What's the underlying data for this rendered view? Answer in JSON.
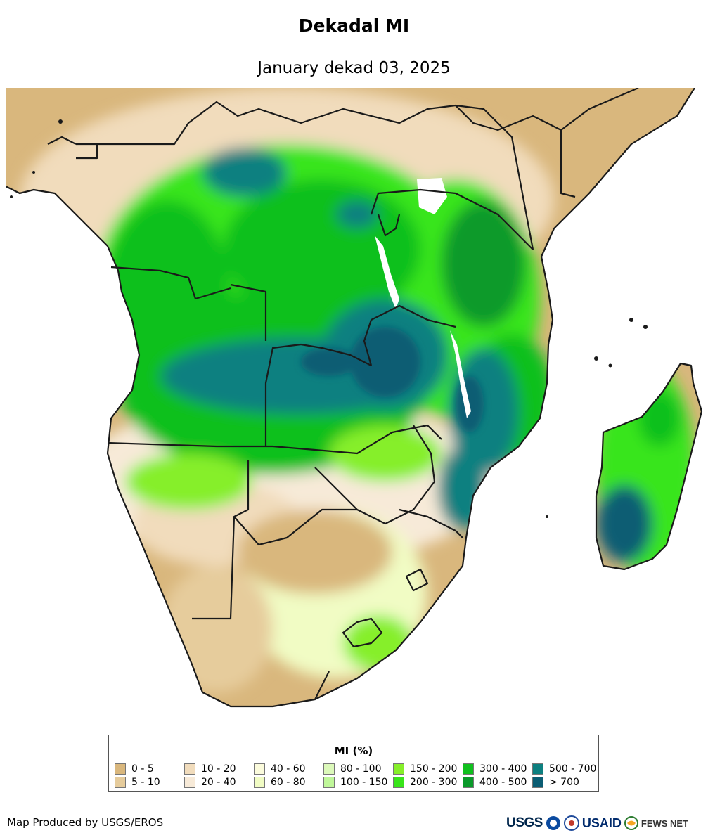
{
  "header": {
    "title": "Dekadal MI",
    "subtitle": "January dekad 03, 2025"
  },
  "map": {
    "region": "Southern Africa",
    "colors": {
      "ocean": "#ffffff",
      "border": "#1a1a1a",
      "dry": "#d9b77d"
    }
  },
  "legend": {
    "title": "MI (%)",
    "classes": [
      {
        "label": "0 - 5",
        "color": "#d9b77d"
      },
      {
        "label": "5 - 10",
        "color": "#e6cc9c"
      },
      {
        "label": "10 - 20",
        "color": "#f1dcbc"
      },
      {
        "label": "20 - 40",
        "color": "#f7ead8"
      },
      {
        "label": "40 - 60",
        "color": "#fbfbdc"
      },
      {
        "label": "60 - 80",
        "color": "#f1fcc4"
      },
      {
        "label": "80 - 100",
        "color": "#dcf9ba"
      },
      {
        "label": "100 - 150",
        "color": "#c0f79a"
      },
      {
        "label": "150 - 200",
        "color": "#86ef2a"
      },
      {
        "label": "200 - 300",
        "color": "#39e51a"
      },
      {
        "label": "300 - 400",
        "color": "#10c01e"
      },
      {
        "label": "400 - 500",
        "color": "#0a9a2a"
      },
      {
        "label": "500 - 700",
        "color": "#0d8080"
      },
      {
        "label": "> 700",
        "color": "#0b5d73"
      }
    ]
  },
  "footer": {
    "credit": "Map Produced by USGS/EROS",
    "logos": {
      "usgs": "USGS",
      "usaid": "USAID",
      "fews": "FEWS NET"
    }
  }
}
